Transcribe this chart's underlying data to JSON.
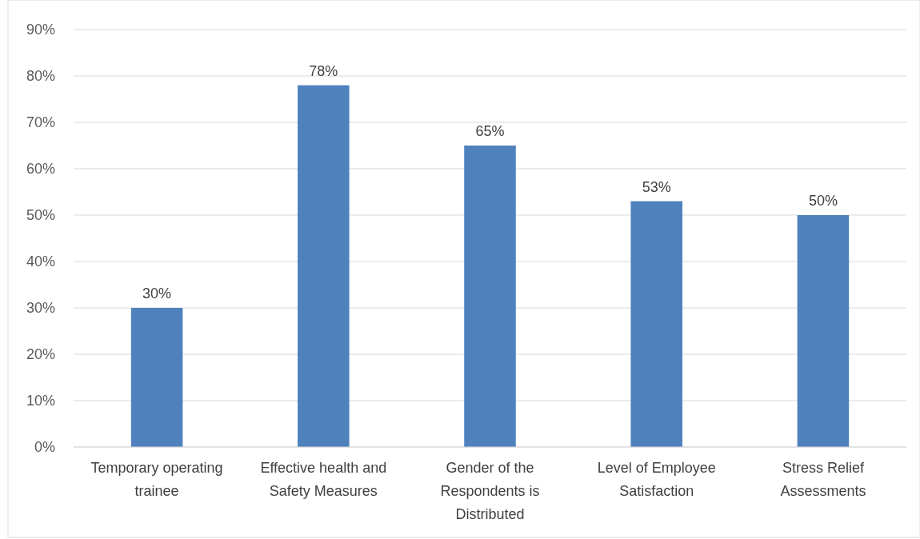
{
  "chart_data": {
    "type": "bar",
    "categories": [
      "Temporary operating trainee",
      "Effective health and Safety Measures",
      "Gender of the Respondents is Distributed",
      "Level of Employee Satisfaction",
      "Stress Relief Assessments"
    ],
    "values": [
      30,
      78,
      65,
      53,
      50
    ],
    "value_labels": [
      "30%",
      "78%",
      "65%",
      "53%",
      "50%"
    ],
    "color": "#4f81bd",
    "ylim": [
      0,
      90
    ],
    "yticks": [
      {
        "value": 0,
        "label": "0%"
      },
      {
        "value": 10,
        "label": "10%"
      },
      {
        "value": 20,
        "label": "20%"
      },
      {
        "value": 30,
        "label": "30%"
      },
      {
        "value": 40,
        "label": "40%"
      },
      {
        "value": 50,
        "label": "50%"
      },
      {
        "value": 60,
        "label": "60%"
      },
      {
        "value": 70,
        "label": "70%"
      },
      {
        "value": 80,
        "label": "80%"
      },
      {
        "value": 90,
        "label": "90%"
      }
    ],
    "grid": "y"
  }
}
